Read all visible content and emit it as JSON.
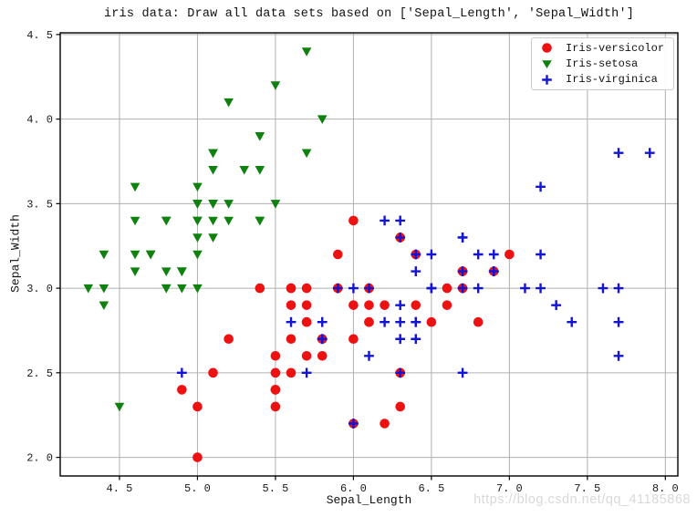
{
  "watermark": "https://blog.csdn.net/qq_41185868",
  "chart_data": {
    "type": "scatter",
    "title": "iris data: Draw all data sets based on ['Sepal_Length', 'Sepal_Width']",
    "xlabel": "Sepal_Length",
    "ylabel": "Sepal_Width",
    "xlim": [
      4.12,
      8.08
    ],
    "ylim": [
      1.89,
      4.51
    ],
    "xticks": [
      4.5,
      5.0,
      5.5,
      6.0,
      6.5,
      7.0,
      7.5,
      8.0
    ],
    "xtick_labels": [
      "4. 5",
      "5. 0",
      "5. 5",
      "6. 0",
      "6. 5",
      "7. 0",
      "7. 5",
      "8. 0"
    ],
    "yticks": [
      2.0,
      2.5,
      3.0,
      3.5,
      4.0,
      4.5
    ],
    "ytick_labels": [
      "2. 0",
      "2. 5",
      "3. 0",
      "3. 5",
      "4. 0",
      "4. 5"
    ],
    "grid": true,
    "grid_color": "#b0b0b0",
    "axis_color": "#000000",
    "tick_label_color": "#1a1a1a",
    "legend_position": "upper right",
    "series": [
      {
        "name": "Iris-versicolor",
        "marker": "circle",
        "color": "#ee1111",
        "points": [
          [
            7.0,
            3.2
          ],
          [
            6.4,
            3.2
          ],
          [
            6.9,
            3.1
          ],
          [
            5.5,
            2.3
          ],
          [
            6.5,
            2.8
          ],
          [
            5.7,
            2.8
          ],
          [
            6.3,
            3.3
          ],
          [
            4.9,
            2.4
          ],
          [
            6.6,
            2.9
          ],
          [
            5.2,
            2.7
          ],
          [
            5.0,
            2.0
          ],
          [
            5.9,
            3.0
          ],
          [
            6.0,
            2.2
          ],
          [
            6.1,
            2.9
          ],
          [
            5.6,
            2.9
          ],
          [
            6.7,
            3.1
          ],
          [
            5.6,
            3.0
          ],
          [
            5.8,
            2.7
          ],
          [
            6.2,
            2.2
          ],
          [
            5.6,
            2.5
          ],
          [
            5.9,
            3.2
          ],
          [
            6.1,
            2.8
          ],
          [
            6.3,
            2.5
          ],
          [
            6.1,
            2.8
          ],
          [
            6.4,
            2.9
          ],
          [
            6.6,
            3.0
          ],
          [
            6.8,
            2.8
          ],
          [
            6.7,
            3.0
          ],
          [
            6.0,
            2.9
          ],
          [
            5.7,
            2.6
          ],
          [
            5.5,
            2.4
          ],
          [
            5.5,
            2.4
          ],
          [
            5.8,
            2.7
          ],
          [
            6.0,
            2.7
          ],
          [
            5.4,
            3.0
          ],
          [
            6.0,
            3.4
          ],
          [
            6.7,
            3.1
          ],
          [
            6.3,
            2.3
          ],
          [
            5.6,
            3.0
          ],
          [
            5.5,
            2.5
          ],
          [
            5.5,
            2.6
          ],
          [
            6.1,
            3.0
          ],
          [
            5.8,
            2.6
          ],
          [
            5.0,
            2.3
          ],
          [
            5.6,
            2.7
          ],
          [
            5.7,
            3.0
          ],
          [
            5.7,
            2.9
          ],
          [
            6.2,
            2.9
          ],
          [
            5.1,
            2.5
          ],
          [
            5.7,
            2.8
          ]
        ]
      },
      {
        "name": "Iris-setosa",
        "marker": "triangle-down",
        "color": "#0e810e",
        "points": [
          [
            5.1,
            3.5
          ],
          [
            4.9,
            3.0
          ],
          [
            4.7,
            3.2
          ],
          [
            4.6,
            3.1
          ],
          [
            5.0,
            3.6
          ],
          [
            5.4,
            3.9
          ],
          [
            4.6,
            3.4
          ],
          [
            5.0,
            3.4
          ],
          [
            4.4,
            2.9
          ],
          [
            4.9,
            3.1
          ],
          [
            5.4,
            3.7
          ],
          [
            4.8,
            3.4
          ],
          [
            4.8,
            3.0
          ],
          [
            4.3,
            3.0
          ],
          [
            5.8,
            4.0
          ],
          [
            5.7,
            4.4
          ],
          [
            5.4,
            3.9
          ],
          [
            5.1,
            3.5
          ],
          [
            5.7,
            3.8
          ],
          [
            5.1,
            3.8
          ],
          [
            5.4,
            3.4
          ],
          [
            5.1,
            3.7
          ],
          [
            4.6,
            3.6
          ],
          [
            5.1,
            3.3
          ],
          [
            4.8,
            3.4
          ],
          [
            5.0,
            3.0
          ],
          [
            5.0,
            3.4
          ],
          [
            5.2,
            3.5
          ],
          [
            5.2,
            3.4
          ],
          [
            4.7,
            3.2
          ],
          [
            4.8,
            3.1
          ],
          [
            5.4,
            3.4
          ],
          [
            5.2,
            4.1
          ],
          [
            5.5,
            4.2
          ],
          [
            4.9,
            3.1
          ],
          [
            5.0,
            3.2
          ],
          [
            5.5,
            3.5
          ],
          [
            4.9,
            3.1
          ],
          [
            4.4,
            3.0
          ],
          [
            5.1,
            3.4
          ],
          [
            5.0,
            3.5
          ],
          [
            4.5,
            2.3
          ],
          [
            4.4,
            3.2
          ],
          [
            5.0,
            3.5
          ],
          [
            5.1,
            3.8
          ],
          [
            4.8,
            3.0
          ],
          [
            5.1,
            3.8
          ],
          [
            4.6,
            3.2
          ],
          [
            5.3,
            3.7
          ],
          [
            5.0,
            3.3
          ]
        ]
      },
      {
        "name": "Iris-virginica",
        "marker": "plus",
        "color": "#1414d4",
        "points": [
          [
            6.3,
            3.3
          ],
          [
            5.8,
            2.7
          ],
          [
            7.1,
            3.0
          ],
          [
            6.3,
            2.9
          ],
          [
            6.5,
            3.0
          ],
          [
            7.6,
            3.0
          ],
          [
            4.9,
            2.5
          ],
          [
            7.3,
            2.9
          ],
          [
            6.7,
            2.5
          ],
          [
            7.2,
            3.6
          ],
          [
            6.5,
            3.2
          ],
          [
            6.4,
            2.7
          ],
          [
            6.8,
            3.0
          ],
          [
            5.7,
            2.5
          ],
          [
            5.8,
            2.8
          ],
          [
            6.4,
            3.2
          ],
          [
            6.5,
            3.0
          ],
          [
            7.7,
            3.8
          ],
          [
            7.7,
            2.6
          ],
          [
            6.0,
            2.2
          ],
          [
            6.9,
            3.2
          ],
          [
            5.6,
            2.8
          ],
          [
            7.7,
            2.8
          ],
          [
            6.3,
            2.7
          ],
          [
            6.7,
            3.3
          ],
          [
            7.2,
            3.2
          ],
          [
            6.2,
            2.8
          ],
          [
            6.1,
            3.0
          ],
          [
            6.4,
            2.8
          ],
          [
            7.2,
            3.0
          ],
          [
            7.4,
            2.8
          ],
          [
            7.9,
            3.8
          ],
          [
            6.4,
            2.8
          ],
          [
            6.3,
            2.8
          ],
          [
            6.1,
            2.6
          ],
          [
            7.7,
            3.0
          ],
          [
            6.3,
            3.4
          ],
          [
            6.4,
            3.1
          ],
          [
            6.0,
            3.0
          ],
          [
            6.9,
            3.1
          ],
          [
            6.7,
            3.1
          ],
          [
            6.9,
            3.1
          ],
          [
            5.8,
            2.7
          ],
          [
            6.8,
            3.2
          ],
          [
            6.7,
            3.3
          ],
          [
            6.7,
            3.0
          ],
          [
            6.3,
            2.5
          ],
          [
            6.5,
            3.0
          ],
          [
            6.2,
            3.4
          ],
          [
            5.9,
            3.0
          ]
        ]
      }
    ]
  }
}
